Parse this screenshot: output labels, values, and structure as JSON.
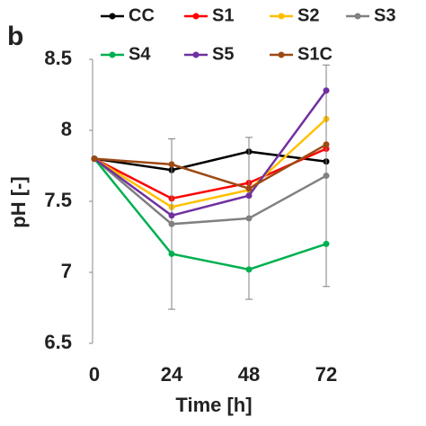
{
  "chart_data": {
    "type": "line",
    "panel_label": "b",
    "x_label": "Time [h]",
    "y_label": "pH [-]",
    "x": [
      0,
      24,
      48,
      72
    ],
    "xlim": [
      0,
      72
    ],
    "xticks": [
      0,
      24,
      48,
      72
    ],
    "ylim": [
      6.5,
      8.5
    ],
    "yticks": [
      6.5,
      7,
      7.5,
      8,
      8.5
    ],
    "grid": false,
    "series": [
      {
        "name": "CC",
        "color": "#000000",
        "values": [
          7.8,
          7.72,
          7.85,
          7.78
        ]
      },
      {
        "name": "S1",
        "color": "#ff0000",
        "values": [
          7.8,
          7.52,
          7.63,
          7.87
        ]
      },
      {
        "name": "S2",
        "color": "#ffc000",
        "values": [
          7.8,
          7.46,
          7.58,
          8.08
        ]
      },
      {
        "name": "S3",
        "color": "#808080",
        "values": [
          7.8,
          7.34,
          7.38,
          7.68
        ],
        "errors": [
          0,
          0.6,
          0.57,
          0.78
        ]
      },
      {
        "name": "S4",
        "color": "#00b050",
        "values": [
          7.8,
          7.13,
          7.02,
          7.2
        ]
      },
      {
        "name": "S5",
        "color": "#7030a0",
        "values": [
          7.8,
          7.4,
          7.54,
          8.28
        ]
      },
      {
        "name": "S1C",
        "color": "#9c4a14",
        "values": [
          7.8,
          7.76,
          7.59,
          7.9
        ]
      }
    ]
  }
}
